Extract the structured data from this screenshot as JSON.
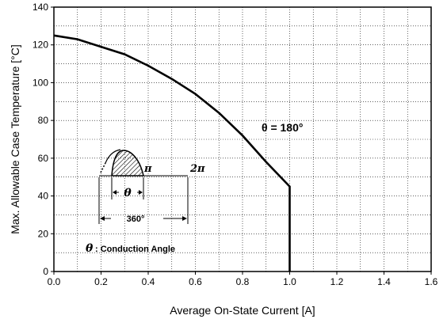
{
  "chart_data": {
    "type": "line",
    "xlabel": "Average On-State Current [A]",
    "ylabel": "Max. Allowable Case Temperature [°C]",
    "xlim": [
      0,
      1.6
    ],
    "ylim": [
      0,
      140
    ],
    "xticks": [
      "0.0",
      "0.2",
      "0.4",
      "0.6",
      "0.8",
      "1.0",
      "1.2",
      "1.4",
      "1.6"
    ],
    "yticks": [
      "0",
      "20",
      "40",
      "60",
      "80",
      "100",
      "120",
      "140"
    ],
    "grid": "dotted",
    "series": [
      {
        "name": "θ = 180°",
        "x": [
          0.0,
          0.1,
          0.2,
          0.3,
          0.4,
          0.5,
          0.6,
          0.7,
          0.8,
          0.9,
          1.0,
          1.0
        ],
        "y": [
          125,
          123,
          119,
          115,
          109,
          102,
          94,
          84,
          72,
          58,
          45,
          0
        ]
      }
    ],
    "annotations": {
      "curve_label": "θ = 180°",
      "pi_label": "π",
      "two_pi_label": "2π",
      "theta_label": "θ",
      "period_label": "360°",
      "legend_theta": "θ",
      "legend_text": ": Conduction Angle"
    }
  }
}
